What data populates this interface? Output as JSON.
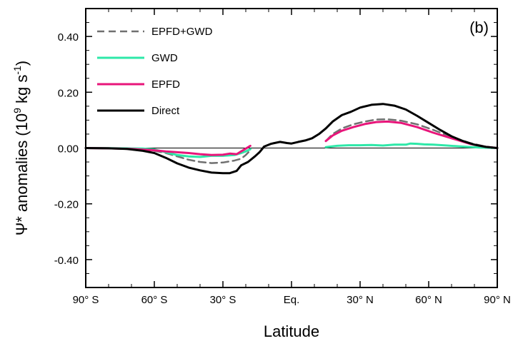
{
  "chart_data": {
    "type": "line",
    "panel_label": "(b)",
    "xlabel": "Latitude",
    "ylabel_prefix": "Ψ* anomalies (10",
    "ylabel_exp1": "9",
    "ylabel_mid": " kg s",
    "ylabel_exp2": "-1",
    "ylabel_suffix": ")",
    "xlim": [
      -90,
      90
    ],
    "ylim": [
      -0.5,
      0.5
    ],
    "x_ticks": [
      -90,
      -60,
      -30,
      0,
      30,
      60,
      90
    ],
    "x_tick_labels": [
      "90° S",
      "60° S",
      "30° S",
      "Eq.",
      "30° N",
      "60° N",
      "90° N"
    ],
    "y_ticks": [
      0.4,
      0.2,
      0.0,
      -0.2,
      -0.4
    ],
    "y_tick_labels": [
      "0.40",
      "0.20",
      "0.00",
      "-0.20",
      "-0.40"
    ],
    "zero_line": true,
    "legend_position": "top-left",
    "series": [
      {
        "name": "EPFD+GWD",
        "color": "#707070",
        "dash": true,
        "segments": [
          [
            [
              -90,
              0
            ],
            [
              -80,
              -0.001
            ],
            [
              -70,
              -0.004
            ],
            [
              -60,
              -0.01
            ],
            [
              -55,
              -0.018
            ],
            [
              -50,
              -0.03
            ],
            [
              -45,
              -0.042
            ],
            [
              -40,
              -0.05
            ],
            [
              -35,
              -0.054
            ],
            [
              -30,
              -0.052
            ],
            [
              -25,
              -0.045
            ],
            [
              -22,
              -0.038
            ],
            [
              -20,
              -0.025
            ],
            [
              -18,
              -0.008
            ]
          ],
          [
            [
              15,
              0.025
            ],
            [
              18,
              0.05
            ],
            [
              22,
              0.07
            ],
            [
              27,
              0.085
            ],
            [
              32,
              0.095
            ],
            [
              37,
              0.102
            ],
            [
              42,
              0.103
            ],
            [
              48,
              0.098
            ],
            [
              55,
              0.085
            ],
            [
              62,
              0.065
            ],
            [
              70,
              0.04
            ],
            [
              78,
              0.018
            ],
            [
              85,
              0.005
            ],
            [
              90,
              0
            ]
          ]
        ]
      },
      {
        "name": "GWD",
        "color": "#2ee8a8",
        "dash": false,
        "segments": [
          [
            [
              -90,
              0
            ],
            [
              -75,
              -0.001
            ],
            [
              -65,
              -0.002
            ],
            [
              -60,
              -0.005
            ],
            [
              -55,
              -0.015
            ],
            [
              -50,
              -0.025
            ],
            [
              -45,
              -0.03
            ],
            [
              -40,
              -0.032
            ],
            [
              -35,
              -0.028
            ],
            [
              -30,
              -0.028
            ],
            [
              -25,
              -0.025
            ],
            [
              -22,
              -0.018
            ],
            [
              -20,
              -0.012
            ],
            [
              -18,
              -0.004
            ]
          ],
          [
            [
              15,
              0.003
            ],
            [
              20,
              0.008
            ],
            [
              25,
              0.01
            ],
            [
              30,
              0.01
            ],
            [
              35,
              0.011
            ],
            [
              40,
              0.009
            ],
            [
              45,
              0.012
            ],
            [
              50,
              0.012
            ],
            [
              52,
              0.016
            ],
            [
              55,
              0.015
            ],
            [
              58,
              0.013
            ],
            [
              62,
              0.012
            ],
            [
              68,
              0.009
            ],
            [
              75,
              0.005
            ],
            [
              82,
              0.002
            ],
            [
              90,
              0
            ]
          ]
        ]
      },
      {
        "name": "EPFD",
        "color": "#e8157a",
        "dash": false,
        "segments": [
          [
            [
              -90,
              0
            ],
            [
              -80,
              -0.001
            ],
            [
              -70,
              -0.003
            ],
            [
              -60,
              -0.008
            ],
            [
              -55,
              -0.012
            ],
            [
              -50,
              -0.015
            ],
            [
              -45,
              -0.018
            ],
            [
              -40,
              -0.022
            ],
            [
              -35,
              -0.025
            ],
            [
              -30,
              -0.024
            ],
            [
              -27,
              -0.02
            ],
            [
              -24,
              -0.022
            ],
            [
              -22,
              -0.012
            ],
            [
              -20,
              -0.002
            ],
            [
              -18,
              0.008
            ]
          ],
          [
            [
              15,
              0.025
            ],
            [
              18,
              0.045
            ],
            [
              22,
              0.062
            ],
            [
              27,
              0.075
            ],
            [
              32,
              0.086
            ],
            [
              37,
              0.093
            ],
            [
              42,
              0.095
            ],
            [
              48,
              0.09
            ],
            [
              55,
              0.075
            ],
            [
              62,
              0.055
            ],
            [
              70,
              0.035
            ],
            [
              78,
              0.015
            ],
            [
              85,
              0.004
            ],
            [
              90,
              0
            ]
          ]
        ]
      },
      {
        "name": "Direct",
        "color": "#000000",
        "dash": false,
        "segments": [
          [
            [
              -90,
              0
            ],
            [
              -80,
              -0.001
            ],
            [
              -72,
              -0.003
            ],
            [
              -65,
              -0.01
            ],
            [
              -60,
              -0.018
            ],
            [
              -55,
              -0.035
            ],
            [
              -50,
              -0.055
            ],
            [
              -45,
              -0.07
            ],
            [
              -40,
              -0.08
            ],
            [
              -35,
              -0.088
            ],
            [
              -30,
              -0.09
            ],
            [
              -27,
              -0.09
            ],
            [
              -24,
              -0.082
            ],
            [
              -22,
              -0.062
            ],
            [
              -19,
              -0.05
            ],
            [
              -16,
              -0.03
            ],
            [
              -14,
              -0.015
            ],
            [
              -12,
              0.005
            ],
            [
              -9,
              0.015
            ],
            [
              -5,
              0.022
            ],
            [
              -2,
              0.018
            ],
            [
              0,
              0.016
            ],
            [
              3,
              0.022
            ],
            [
              6,
              0.027
            ],
            [
              9,
              0.035
            ],
            [
              12,
              0.05
            ],
            [
              15,
              0.07
            ],
            [
              18,
              0.095
            ],
            [
              22,
              0.118
            ],
            [
              26,
              0.13
            ],
            [
              30,
              0.145
            ],
            [
              35,
              0.155
            ],
            [
              40,
              0.158
            ],
            [
              45,
              0.152
            ],
            [
              50,
              0.138
            ],
            [
              55,
              0.115
            ],
            [
              60,
              0.09
            ],
            [
              65,
              0.065
            ],
            [
              70,
              0.042
            ],
            [
              75,
              0.025
            ],
            [
              80,
              0.012
            ],
            [
              85,
              0.004
            ],
            [
              90,
              0
            ]
          ]
        ]
      }
    ]
  }
}
